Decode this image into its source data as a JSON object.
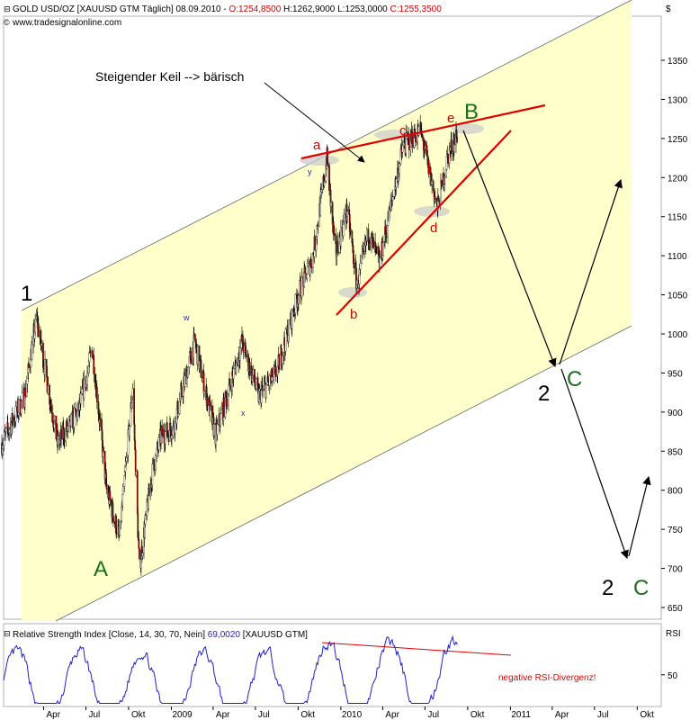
{
  "header": {
    "title": "GOLD USD/OZ [XAUUSD GTM  Täglich] 08.09.2010 - ",
    "open": "O:1254,8500",
    "hlc": " H:1262,9000 L:1253,0000 ",
    "close": "C:1255,3500",
    "website": "www.tradesignalonline.com",
    "currency_symbol": "$"
  },
  "rsi_panel": {
    "title": "Relative Strength Index [Close, 14, 30, 70, Nein] ",
    "value": "69,0020",
    "symbol": " [XAUUSD GTM]",
    "label": "RSI",
    "divergence_note": "negative RSI-Divergenz!"
  },
  "annotations": {
    "wedge_note": "Steigender Keil --> bärisch",
    "wave_labels": [
      "a",
      "b",
      "c",
      "d",
      "e"
    ],
    "small_labels": [
      "y",
      "w",
      "x"
    ],
    "big_labels": [
      "A",
      "B",
      "C",
      "C"
    ],
    "numbers": [
      "1",
      "2",
      "2"
    ]
  },
  "colors": {
    "channel_fill": "#ffffcc",
    "wedge_line": "#e00000",
    "wave_label_red": "#d40000",
    "wave_label_green": "#1a6e1a",
    "rsi_line": "#2020d0",
    "candle_up": "#ffffff",
    "candle_down": "#a00000"
  },
  "chart_data": {
    "type": "line",
    "title": "GOLD USD/OZ [XAUUSD GTM  Täglich] 08.09.2010",
    "xlabel": "",
    "ylabel": "$",
    "ylim": [
      630,
      1400
    ],
    "x_tick_labels": [
      "Apr",
      "Jul",
      "Okt",
      "2009",
      "Apr",
      "Jul",
      "Okt",
      "2010",
      "Apr",
      "Jul",
      "Okt",
      "2011",
      "Apr",
      "Jul",
      "Okt"
    ],
    "y_tick_labels": [
      "1350",
      "1300",
      "1250",
      "1200",
      "1150",
      "1100",
      "1050",
      "1000",
      "950",
      "900",
      "850",
      "800",
      "750",
      "700",
      "650"
    ],
    "price_path": {
      "x": [
        "2008-01-02",
        "2008-02-20",
        "2008-03-17",
        "2008-05-01",
        "2008-06-15",
        "2008-07-15",
        "2008-08-15",
        "2008-09-11",
        "2008-10-10",
        "2008-10-24",
        "2008-11-20",
        "2008-12-10",
        "2009-01-05",
        "2009-02-20",
        "2009-04-06",
        "2009-05-20",
        "2009-06-02",
        "2009-07-08",
        "2009-08-15",
        "2009-10-01",
        "2009-11-02",
        "2009-12-02",
        "2009-12-20",
        "2010-01-15",
        "2010-02-05",
        "2010-03-01",
        "2010-03-25",
        "2010-05-01",
        "2010-05-15",
        "2010-06-21",
        "2010-07-28",
        "2010-08-20",
        "2010-09-08"
      ],
      "y": [
        860,
        920,
        1020,
        860,
        900,
        980,
        800,
        740,
        930,
        700,
        820,
        870,
        880,
        990,
        870,
        960,
        990,
        920,
        950,
        1050,
        1100,
        1225,
        1100,
        1160,
        1060,
        1130,
        1090,
        1200,
        1240,
        1260,
        1160,
        1230,
        1255
      ]
    },
    "rsi": {
      "ylim": [
        30,
        80
      ],
      "levels": [
        50
      ],
      "last": 69.002
    },
    "forecast_path": {
      "x": [
        "2010-09-08",
        "2011-03-15",
        "2011-07-01",
        "2011-07-20",
        "2011-10-15"
      ],
      "y": [
        1255,
        960,
        1200,
        700,
        820
      ]
    },
    "forecast_path_2": {
      "x": [
        "2011-03-15",
        "2011-08-10",
        "2011-10-15"
      ],
      "y": [
        960,
        700,
        820
      ]
    }
  }
}
